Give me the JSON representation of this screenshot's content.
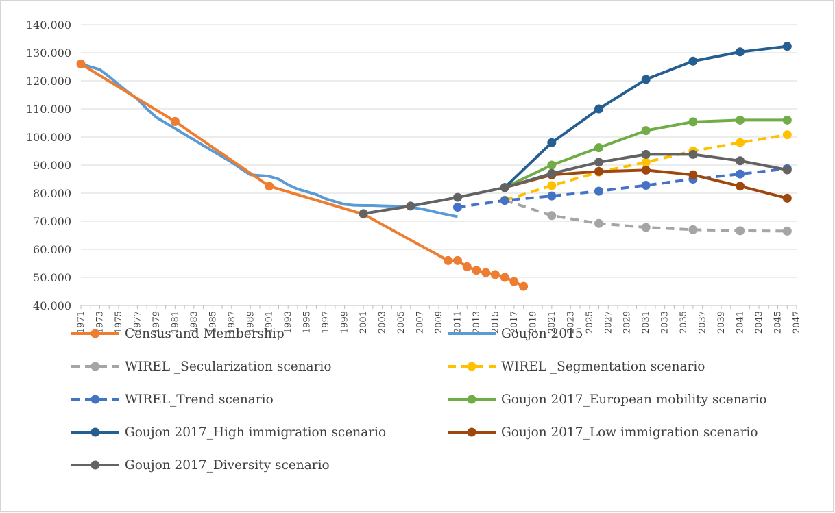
{
  "chart_data": {
    "type": "line",
    "title": "",
    "xlabel": "",
    "ylabel": "",
    "xlim": [
      1971,
      2047
    ],
    "ylim": [
      40000,
      140000
    ],
    "y_ticks": [
      "40.000",
      "50.000",
      "60.000",
      "70.000",
      "80.000",
      "90.000",
      "100.000",
      "110.000",
      "120.000",
      "130.000",
      "140.000"
    ],
    "x_ticks": [
      "1971",
      "1973",
      "1975",
      "1977",
      "1979",
      "1981",
      "1983",
      "1985",
      "1987",
      "1989",
      "1991",
      "1993",
      "1995",
      "1997",
      "1999",
      "2001",
      "2003",
      "2005",
      "2007",
      "2009",
      "2011",
      "2013",
      "2015",
      "2017",
      "2019",
      "2021",
      "2023",
      "2025",
      "2027",
      "2029",
      "2031",
      "2033",
      "2035",
      "2037",
      "2039",
      "2041",
      "2043",
      "2045",
      "2047"
    ],
    "grid": "horizontal",
    "legend_position": "bottom",
    "series": [
      {
        "name": "Census and Membership",
        "color": "#ed7d31",
        "dash": "solid",
        "markers": true,
        "points": [
          [
            1971,
            126000
          ],
          [
            1981,
            105500
          ],
          [
            1991,
            82500
          ],
          [
            2001,
            72500
          ],
          [
            2010,
            56000
          ],
          [
            2011,
            56000
          ],
          [
            2012,
            53800
          ],
          [
            2013,
            52500
          ],
          [
            2014,
            51700
          ],
          [
            2015,
            51000
          ],
          [
            2016,
            50000
          ],
          [
            2017,
            48500
          ],
          [
            2018,
            46800
          ]
        ]
      },
      {
        "name": "Goujon 2015",
        "color": "#5b9bd5",
        "dash": "solid",
        "markers": false,
        "points": [
          [
            1971,
            126000
          ],
          [
            1972,
            125000
          ],
          [
            1973,
            124000
          ],
          [
            1974,
            121500
          ],
          [
            1975,
            118700
          ],
          [
            1976,
            116000
          ],
          [
            1977,
            113500
          ],
          [
            1978,
            110000
          ],
          [
            1979,
            107000
          ],
          [
            1980,
            105000
          ],
          [
            1981,
            103000
          ],
          [
            1982,
            101000
          ],
          [
            1983,
            99000
          ],
          [
            1984,
            97000
          ],
          [
            1985,
            95000
          ],
          [
            1986,
            93000
          ],
          [
            1987,
            91000
          ],
          [
            1988,
            88700
          ],
          [
            1989,
            86500
          ],
          [
            1990,
            86300
          ],
          [
            1991,
            86000
          ],
          [
            1992,
            85000
          ],
          [
            1993,
            83000
          ],
          [
            1994,
            81500
          ],
          [
            1995,
            80500
          ],
          [
            1996,
            79500
          ],
          [
            1997,
            78000
          ],
          [
            1998,
            77000
          ],
          [
            1999,
            76000
          ],
          [
            2000,
            75700
          ],
          [
            2001,
            75600
          ],
          [
            2002,
            75600
          ],
          [
            2003,
            75500
          ],
          [
            2004,
            75400
          ],
          [
            2005,
            75300
          ],
          [
            2006,
            75000
          ],
          [
            2007,
            74500
          ],
          [
            2008,
            73800
          ],
          [
            2009,
            73000
          ],
          [
            2010,
            72300
          ],
          [
            2011,
            71600
          ]
        ]
      },
      {
        "name": "WIREL _Secularization scenario",
        "color": "#a5a5a5",
        "dash": "dashed",
        "markers": true,
        "points": [
          [
            2016,
            77500
          ],
          [
            2021,
            72000
          ],
          [
            2026,
            69200
          ],
          [
            2031,
            67800
          ],
          [
            2036,
            67000
          ],
          [
            2041,
            66600
          ],
          [
            2046,
            66500
          ]
        ]
      },
      {
        "name": "WIREL _Segmentation scenario",
        "color": "#ffc000",
        "dash": "dashed",
        "markers": true,
        "points": [
          [
            2016,
            77500
          ],
          [
            2021,
            82700
          ],
          [
            2026,
            87500
          ],
          [
            2031,
            91000
          ],
          [
            2036,
            95000
          ],
          [
            2041,
            98000
          ],
          [
            2046,
            100800
          ]
        ]
      },
      {
        "name": "WIREL_Trend scenario",
        "color": "#4472c4",
        "dash": "dashed",
        "markers": true,
        "points": [
          [
            2011,
            75000
          ],
          [
            2016,
            77400
          ],
          [
            2021,
            79000
          ],
          [
            2026,
            80700
          ],
          [
            2031,
            82800
          ],
          [
            2036,
            85000
          ],
          [
            2041,
            86800
          ],
          [
            2046,
            88700
          ]
        ]
      },
      {
        "name": "Goujon 2017_European mobility scenario",
        "color": "#70ad47",
        "dash": "solid",
        "markers": true,
        "points": [
          [
            2016,
            82000
          ],
          [
            2021,
            90000
          ],
          [
            2026,
            96200
          ],
          [
            2031,
            102300
          ],
          [
            2036,
            105400
          ],
          [
            2041,
            106000
          ],
          [
            2046,
            106000
          ]
        ]
      },
      {
        "name": "Goujon 2017_High immigration scenario",
        "color": "#255e91",
        "dash": "solid",
        "markers": true,
        "points": [
          [
            2016,
            82000
          ],
          [
            2021,
            98000
          ],
          [
            2026,
            110000
          ],
          [
            2031,
            120500
          ],
          [
            2036,
            127000
          ],
          [
            2041,
            130300
          ],
          [
            2046,
            132300
          ]
        ]
      },
      {
        "name": "Goujon 2017_Low immigration scenario",
        "color": "#9e480e",
        "dash": "solid",
        "markers": true,
        "points": [
          [
            2016,
            82000
          ],
          [
            2021,
            86500
          ],
          [
            2026,
            87700
          ],
          [
            2031,
            88200
          ],
          [
            2036,
            86500
          ],
          [
            2041,
            82500
          ],
          [
            2046,
            78200
          ]
        ]
      },
      {
        "name": "Goujon 2017_Diversity scenario",
        "color": "#636363",
        "dash": "solid",
        "markers": true,
        "points": [
          [
            2001,
            72700
          ],
          [
            2006,
            75400
          ],
          [
            2011,
            78500
          ],
          [
            2016,
            82000
          ],
          [
            2021,
            87000
          ],
          [
            2026,
            91000
          ],
          [
            2031,
            93800
          ],
          [
            2036,
            93800
          ],
          [
            2041,
            91500
          ],
          [
            2046,
            88300
          ]
        ]
      }
    ]
  }
}
